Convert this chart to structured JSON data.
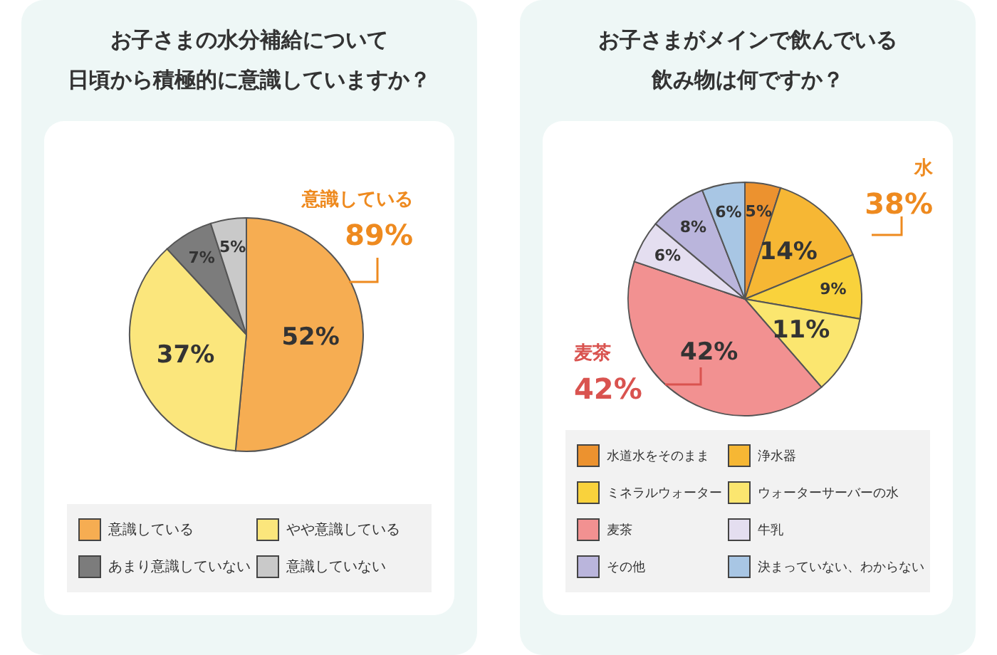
{
  "chart_data": [
    {
      "type": "pie",
      "title": "お子さまの水分補給について日頃から積極的に意識していますか？",
      "categories": [
        "意識している",
        "やや意識している",
        "あまり意識していない",
        "意識していない"
      ],
      "values": [
        52,
        37,
        7,
        5
      ],
      "colors": [
        "#f6ad52",
        "#fbe67c",
        "#7c7c7c",
        "#c9c9c9"
      ],
      "value_labels": [
        "52%",
        "37%",
        "7%",
        "5%"
      ],
      "legend": "bottom",
      "annotations": [
        "意識している 89%"
      ]
    },
    {
      "type": "pie",
      "title": "お子さまがメインで飲んでいる飲み物は何ですか？",
      "categories": [
        "水道水をそのまま",
        "浄水器",
        "ミネラルウォーター",
        "ウォーターサーバーの水",
        "麦茶",
        "牛乳",
        "その他",
        "決まっていない、わからない"
      ],
      "values": [
        5,
        14,
        9,
        11,
        42,
        6,
        8,
        6
      ],
      "colors": [
        "#ec922f",
        "#f6b734",
        "#f9d23c",
        "#fbe66f",
        "#f29191",
        "#e4def0",
        "#bab5dc",
        "#a8c6e4"
      ],
      "value_labels": [
        "5%",
        "14%",
        "9%",
        "11%",
        "42%",
        "6%",
        "8%",
        "6%"
      ],
      "legend": "bottom",
      "annotations": [
        "水 38%",
        "麦茶 42%"
      ]
    }
  ]
}
